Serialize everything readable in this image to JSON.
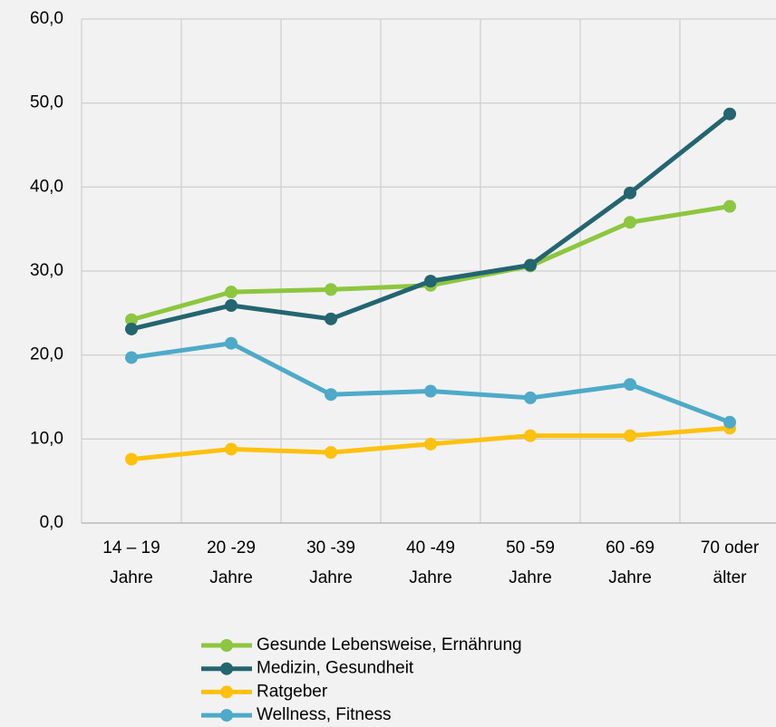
{
  "chart_data": {
    "type": "line",
    "categories": [
      [
        "14 – 19",
        "Jahre"
      ],
      [
        "20 -29",
        "Jahre"
      ],
      [
        "30 -39",
        "Jahre"
      ],
      [
        "40 -49",
        "Jahre"
      ],
      [
        "50 -59",
        "Jahre"
      ],
      [
        "60 -69",
        "Jahre"
      ],
      [
        "70 oder",
        "älter"
      ]
    ],
    "series": [
      {
        "name": "Gesunde Lebensweise, Ernährung",
        "color": "#8dc63f",
        "values": [
          24.2,
          27.5,
          27.8,
          28.3,
          30.6,
          35.8,
          37.7
        ]
      },
      {
        "name": "Medizin, Gesundheit",
        "color": "#236570",
        "values": [
          23.1,
          25.9,
          24.3,
          28.8,
          30.7,
          39.3,
          48.7
        ]
      },
      {
        "name": "Ratgeber",
        "color": "#fdc10e",
        "values": [
          7.6,
          8.8,
          8.4,
          9.4,
          10.4,
          10.4,
          11.3
        ]
      },
      {
        "name": "Wellness, Fitness",
        "color": "#4eaac8",
        "values": [
          19.7,
          21.4,
          15.3,
          15.7,
          14.9,
          16.5,
          12.0
        ]
      }
    ],
    "ylim": [
      0,
      60
    ],
    "yticks": [
      {
        "value": 0,
        "label": "0,0"
      },
      {
        "value": 10,
        "label": "10,0"
      },
      {
        "value": 20,
        "label": "20,0"
      },
      {
        "value": 30,
        "label": "30,0"
      },
      {
        "value": 40,
        "label": "40,0"
      },
      {
        "value": 50,
        "label": "50,0"
      },
      {
        "value": 60,
        "label": "60,0"
      }
    ],
    "grid": true,
    "legend": "bottom"
  }
}
